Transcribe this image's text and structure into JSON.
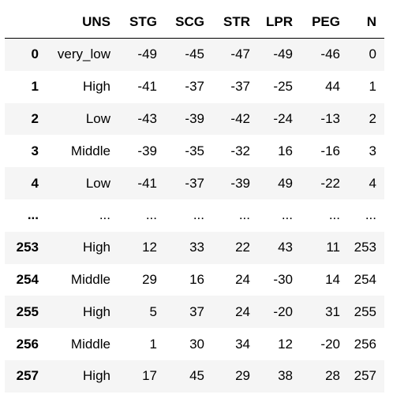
{
  "table": {
    "index_header": "",
    "columns": [
      "UNS",
      "STG",
      "SCG",
      "STR",
      "LPR",
      "PEG",
      "N"
    ],
    "rows": [
      {
        "index": "0",
        "cells": [
          "very_low",
          "-49",
          "-45",
          "-47",
          "-49",
          "-46",
          "0"
        ]
      },
      {
        "index": "1",
        "cells": [
          "High",
          "-41",
          "-37",
          "-37",
          "-25",
          "44",
          "1"
        ]
      },
      {
        "index": "2",
        "cells": [
          "Low",
          "-43",
          "-39",
          "-42",
          "-24",
          "-13",
          "2"
        ]
      },
      {
        "index": "3",
        "cells": [
          "Middle",
          "-39",
          "-35",
          "-32",
          "16",
          "-16",
          "3"
        ]
      },
      {
        "index": "4",
        "cells": [
          "Low",
          "-41",
          "-37",
          "-39",
          "49",
          "-22",
          "4"
        ]
      },
      {
        "index": "...",
        "cells": [
          "...",
          "...",
          "...",
          "...",
          "...",
          "...",
          "..."
        ]
      },
      {
        "index": "253",
        "cells": [
          "High",
          "12",
          "33",
          "22",
          "43",
          "11",
          "253"
        ]
      },
      {
        "index": "254",
        "cells": [
          "Middle",
          "29",
          "16",
          "24",
          "-30",
          "14",
          "254"
        ]
      },
      {
        "index": "255",
        "cells": [
          "High",
          "5",
          "37",
          "24",
          "-20",
          "31",
          "255"
        ]
      },
      {
        "index": "256",
        "cells": [
          "Middle",
          "1",
          "30",
          "34",
          "12",
          "-20",
          "256"
        ]
      },
      {
        "index": "257",
        "cells": [
          "High",
          "17",
          "45",
          "29",
          "38",
          "28",
          "257"
        ]
      }
    ]
  },
  "colors": {
    "odd_row_background": "#f5f5f5",
    "even_row_background": "#ffffff",
    "header_rule": "#000000",
    "text": "#000000"
  }
}
